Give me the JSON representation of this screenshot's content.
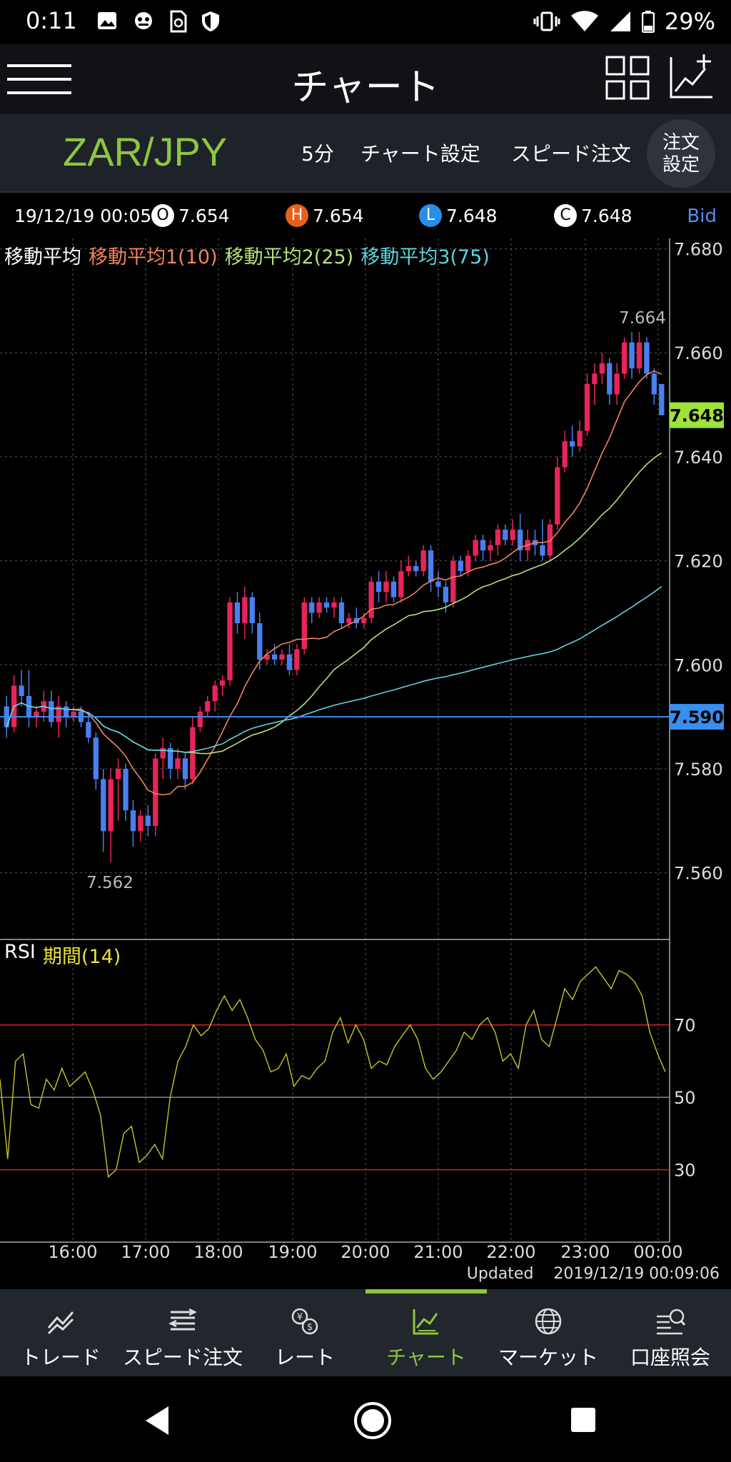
{
  "status_bar": {
    "time": "0:11",
    "battery": "29%",
    "icons": [
      "image-icon",
      "game-icon",
      "sim-icon",
      "shield-icon",
      "vibrate-icon",
      "wifi-icon",
      "signal-icon",
      "battery-icon"
    ]
  },
  "header": {
    "title": "チャート",
    "icons": [
      "menu-icon",
      "grid-icon",
      "add-chart-icon"
    ]
  },
  "toolbar": {
    "pair": "ZAR/JPY",
    "interval": "5分",
    "chart_settings": "チャート設定",
    "speed_order": "スピード注文",
    "order_settings_line1": "注文",
    "order_settings_line2": "設定"
  },
  "ohlc": {
    "datetime": "19/12/19 00:05",
    "open_badge": "O",
    "open": "7.654",
    "high_badge": "H",
    "high": "7.654",
    "low_badge": "L",
    "low": "7.648",
    "close_badge": "C",
    "close": "7.648",
    "price_type": "Bid"
  },
  "legend": {
    "ma_title": "移動平均",
    "ma1": "移動平均1(10)",
    "ma2": "移動平均2(25)",
    "ma3": "移動平均3(75)",
    "rsi_title": "RSI",
    "rsi_period": "期間(14)"
  },
  "colors": {
    "ma1": "#f0845c",
    "ma2": "#b6e27a",
    "ma3": "#5fd3dd",
    "rsi": "#c9c42a",
    "up_candle": "#e8245a",
    "down_candle": "#4a7ff0",
    "current_price": "#9ee23a",
    "line_price": "#3a8ef0",
    "accent": "#8dc63f"
  },
  "chart_data": {
    "type": "candlestick",
    "pair": "ZAR/JPY",
    "interval": "5分",
    "y_ticks": [
      "7.680",
      "7.660",
      "7.640",
      "7.620",
      "7.600",
      "7.580",
      "7.560"
    ],
    "ylim": [
      7.548,
      7.682
    ],
    "x_ticks": [
      "16:00",
      "17:00",
      "18:00",
      "19:00",
      "20:00",
      "21:00",
      "22:00",
      "23:00",
      "00:00"
    ],
    "current_price": "7.648",
    "line_price": "7.590",
    "high_label": "7.664",
    "low_label": "7.562",
    "candles_ohlc": [
      [
        7.592,
        7.594,
        7.586,
        7.588
      ],
      [
        7.588,
        7.598,
        7.587,
        7.596
      ],
      [
        7.596,
        7.599,
        7.592,
        7.594
      ],
      [
        7.594,
        7.599,
        7.588,
        7.59
      ],
      [
        7.59,
        7.592,
        7.588,
        7.591
      ],
      [
        7.591,
        7.595,
        7.589,
        7.593
      ],
      [
        7.593,
        7.595,
        7.588,
        7.589
      ],
      [
        7.589,
        7.594,
        7.586,
        7.592
      ],
      [
        7.592,
        7.593,
        7.588,
        7.59
      ],
      [
        7.59,
        7.592,
        7.589,
        7.591
      ],
      [
        7.591,
        7.592,
        7.588,
        7.589
      ],
      [
        7.589,
        7.591,
        7.585,
        7.586
      ],
      [
        7.586,
        7.587,
        7.576,
        7.578
      ],
      [
        7.578,
        7.58,
        7.564,
        7.568
      ],
      [
        7.568,
        7.58,
        7.562,
        7.578
      ],
      [
        7.578,
        7.582,
        7.57,
        7.58
      ],
      [
        7.58,
        7.581,
        7.57,
        7.572
      ],
      [
        7.572,
        7.574,
        7.565,
        7.568
      ],
      [
        7.568,
        7.572,
        7.566,
        7.571
      ],
      [
        7.571,
        7.573,
        7.567,
        7.569
      ],
      [
        7.569,
        7.583,
        7.567,
        7.582
      ],
      [
        7.582,
        7.586,
        7.578,
        7.584
      ],
      [
        7.584,
        7.585,
        7.578,
        7.58
      ],
      [
        7.58,
        7.584,
        7.578,
        7.582
      ],
      [
        7.582,
        7.583,
        7.576,
        7.578
      ],
      [
        7.578,
        7.59,
        7.577,
        7.588
      ],
      [
        7.588,
        7.592,
        7.587,
        7.591
      ],
      [
        7.591,
        7.594,
        7.59,
        7.593
      ],
      [
        7.593,
        7.597,
        7.591,
        7.596
      ],
      [
        7.596,
        7.598,
        7.594,
        7.597
      ],
      [
        7.597,
        7.613,
        7.596,
        7.612
      ],
      [
        7.612,
        7.614,
        7.606,
        7.608
      ],
      [
        7.608,
        7.615,
        7.605,
        7.613
      ],
      [
        7.613,
        7.614,
        7.606,
        7.608
      ],
      [
        7.608,
        7.61,
        7.599,
        7.601
      ],
      [
        7.601,
        7.603,
        7.6,
        7.602
      ],
      [
        7.602,
        7.604,
        7.6,
        7.601
      ],
      [
        7.601,
        7.603,
        7.6,
        7.602
      ],
      [
        7.602,
        7.604,
        7.598,
        7.599
      ],
      [
        7.599,
        7.604,
        7.598,
        7.603
      ],
      [
        7.603,
        7.613,
        7.602,
        7.612
      ],
      [
        7.612,
        7.613,
        7.608,
        7.61
      ],
      [
        7.61,
        7.613,
        7.609,
        7.612
      ],
      [
        7.612,
        7.613,
        7.61,
        7.611
      ],
      [
        7.611,
        7.613,
        7.609,
        7.612
      ],
      [
        7.612,
        7.613,
        7.607,
        7.608
      ],
      [
        7.608,
        7.61,
        7.607,
        7.609
      ],
      [
        7.609,
        7.611,
        7.607,
        7.608
      ],
      [
        7.608,
        7.61,
        7.607,
        7.609
      ],
      [
        7.609,
        7.617,
        7.608,
        7.616
      ],
      [
        7.616,
        7.618,
        7.612,
        7.614
      ],
      [
        7.614,
        7.618,
        7.612,
        7.616
      ],
      [
        7.616,
        7.617,
        7.612,
        7.613
      ],
      [
        7.613,
        7.62,
        7.612,
        7.618
      ],
      [
        7.618,
        7.621,
        7.617,
        7.619
      ],
      [
        7.619,
        7.62,
        7.617,
        7.618
      ],
      [
        7.618,
        7.623,
        7.617,
        7.622
      ],
      [
        7.622,
        7.623,
        7.614,
        7.616
      ],
      [
        7.616,
        7.618,
        7.613,
        7.615
      ],
      [
        7.615,
        7.616,
        7.61,
        7.612
      ],
      [
        7.612,
        7.621,
        7.611,
        7.62
      ],
      [
        7.62,
        7.621,
        7.617,
        7.618
      ],
      [
        7.618,
        7.622,
        7.617,
        7.621
      ],
      [
        7.621,
        7.625,
        7.62,
        7.624
      ],
      [
        7.624,
        7.625,
        7.62,
        7.622
      ],
      [
        7.622,
        7.624,
        7.62,
        7.623
      ],
      [
        7.623,
        7.627,
        7.621,
        7.626
      ],
      [
        7.626,
        7.627,
        7.623,
        7.624
      ],
      [
        7.624,
        7.628,
        7.623,
        7.626
      ],
      [
        7.626,
        7.629,
        7.62,
        7.622
      ],
      [
        7.622,
        7.626,
        7.62,
        7.624
      ],
      [
        7.624,
        7.626,
        7.621,
        7.623
      ],
      [
        7.623,
        7.628,
        7.62,
        7.621
      ],
      [
        7.621,
        7.628,
        7.62,
        7.627
      ],
      [
        7.627,
        7.64,
        7.626,
        7.638
      ],
      [
        7.638,
        7.645,
        7.637,
        7.643
      ],
      [
        7.643,
        7.646,
        7.64,
        7.642
      ],
      [
        7.642,
        7.647,
        7.641,
        7.645
      ],
      [
        7.645,
        7.656,
        7.644,
        7.654
      ],
      [
        7.654,
        7.658,
        7.65,
        7.656
      ],
      [
        7.656,
        7.66,
        7.654,
        7.658
      ],
      [
        7.658,
        7.659,
        7.65,
        7.652
      ],
      [
        7.652,
        7.658,
        7.65,
        7.656
      ],
      [
        7.656,
        7.663,
        7.655,
        7.662
      ],
      [
        7.662,
        7.664,
        7.655,
        7.657
      ],
      [
        7.657,
        7.664,
        7.656,
        7.662
      ],
      [
        7.662,
        7.663,
        7.655,
        7.656
      ],
      [
        7.656,
        7.657,
        7.65,
        7.652
      ],
      [
        7.654,
        7.654,
        7.648,
        7.648
      ]
    ],
    "rsi_ticks": [
      "70",
      "50",
      "30"
    ],
    "rsi_ylim": [
      10,
      94
    ],
    "rsi_values": [
      55,
      33,
      60,
      62,
      48,
      47,
      55,
      52,
      58,
      53,
      55,
      57,
      52,
      45,
      28,
      30,
      40,
      42,
      32,
      34,
      37,
      33,
      50,
      60,
      64,
      70,
      67,
      69,
      74,
      78,
      74,
      77,
      72,
      66,
      63,
      57,
      58,
      62,
      53,
      56,
      55,
      58,
      60,
      68,
      72,
      65,
      70,
      66,
      58,
      60,
      59,
      64,
      67,
      70,
      66,
      58,
      55,
      57,
      60,
      63,
      68,
      66,
      70,
      72,
      68,
      60,
      62,
      58,
      70,
      74,
      66,
      64,
      72,
      80,
      77,
      82,
      84,
      86,
      83,
      80,
      85,
      84,
      82,
      78,
      68,
      62,
      57
    ]
  },
  "updated": {
    "label": "Updated",
    "value": "2019/12/19  00:09:06"
  },
  "tabs": [
    {
      "label": "トレード",
      "icon": "trade-icon"
    },
    {
      "label": "スピード注文",
      "icon": "speed-order-icon"
    },
    {
      "label": "レート",
      "icon": "rate-icon"
    },
    {
      "label": "チャート",
      "icon": "chart-icon",
      "active": true
    },
    {
      "label": "マーケット",
      "icon": "market-icon"
    },
    {
      "label": "口座照会",
      "icon": "account-icon"
    }
  ],
  "navbar": {
    "icons": [
      "back-icon",
      "home-icon",
      "recents-icon"
    ]
  }
}
